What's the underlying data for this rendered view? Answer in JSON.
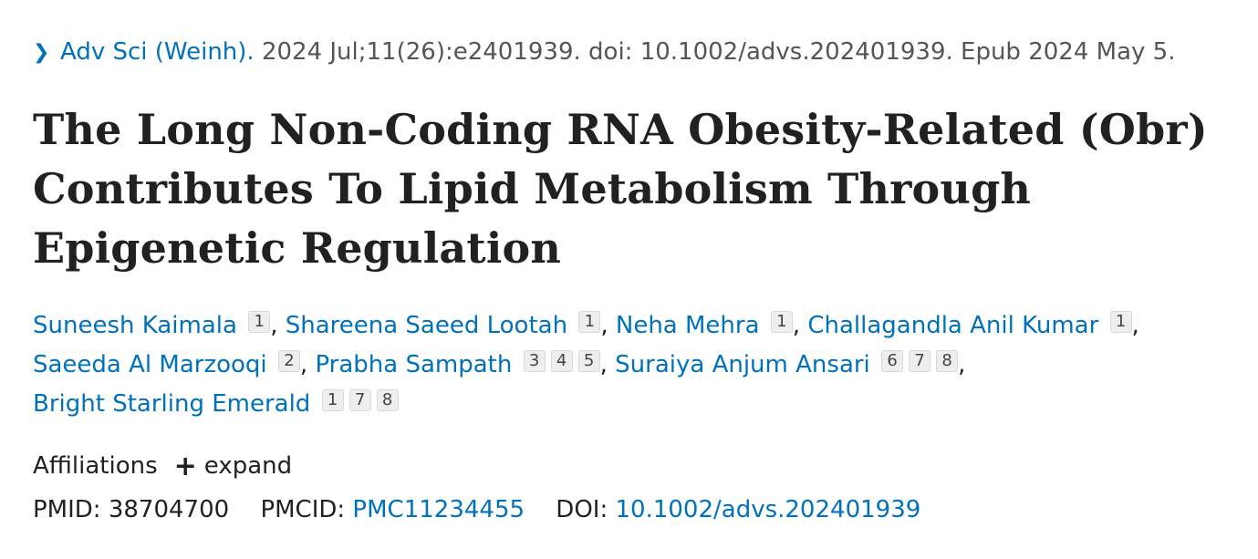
{
  "citation": {
    "journal": "Adv Sci (Weinh).",
    "details": "2024 Jul;11(26):e2401939. doi: 10.1002/advs.202401939. Epub 2024 May 5."
  },
  "title": "The Long Non-Coding RNA Obesity-Related (Obr) Contributes To Lipid Metabolism Through Epigenetic Regulation",
  "authors": [
    {
      "name": "Suneesh Kaimala",
      "affiliations": [
        "1"
      ]
    },
    {
      "name": "Shareena Saeed Lootah",
      "affiliations": [
        "1"
      ]
    },
    {
      "name": "Neha Mehra",
      "affiliations": [
        "1"
      ]
    },
    {
      "name": "Challagandla Anil Kumar",
      "affiliations": [
        "1"
      ]
    },
    {
      "name": "Saeeda Al Marzooqi",
      "affiliations": [
        "2"
      ]
    },
    {
      "name": "Prabha Sampath",
      "affiliations": [
        "3",
        "4",
        "5"
      ]
    },
    {
      "name": "Suraiya Anjum Ansari",
      "affiliations": [
        "6",
        "7",
        "8"
      ]
    },
    {
      "name": "Bright Starling Emerald",
      "affiliations": [
        "1",
        "7",
        "8"
      ]
    }
  ],
  "affiliations": {
    "label": "Affiliations",
    "expand_label": "expand"
  },
  "ids": {
    "pmid_label": "PMID:",
    "pmid": "38704700",
    "pmcid_label": "PMCID:",
    "pmcid": "PMC11234455",
    "doi_label": "DOI:",
    "doi": "10.1002/advs.202401939"
  },
  "colors": {
    "link": "#0071bc",
    "text": "#212121",
    "muted": "#555555"
  },
  "icons": {
    "citation_chevron": "chevron-right-icon",
    "affiliations_expand": "plus-icon"
  }
}
